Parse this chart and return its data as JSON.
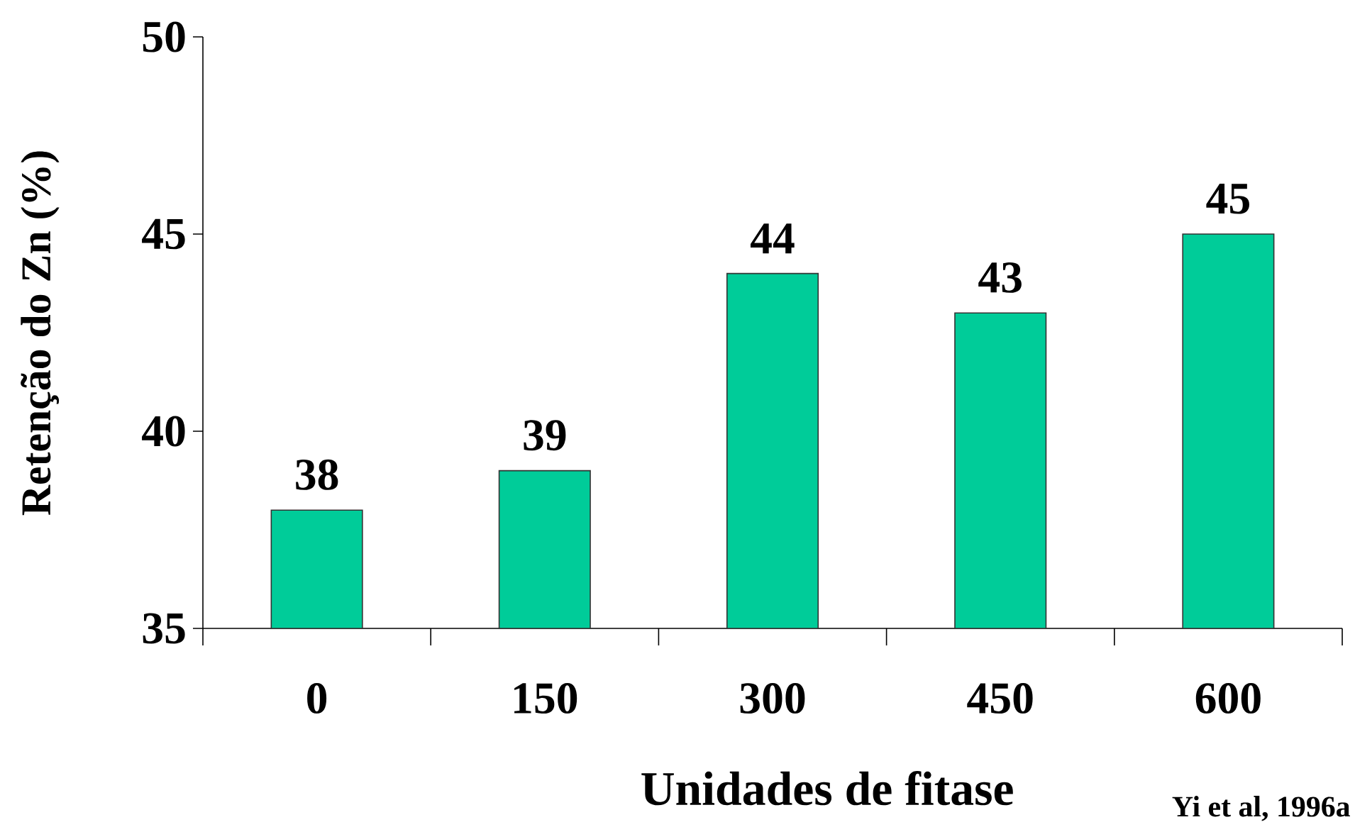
{
  "chart_data": {
    "type": "bar",
    "xlabel": "Unidades de fitase",
    "ylabel": "Retenção do Zn (%)",
    "annotations": [
      "Yi et al, 1996a"
    ],
    "categories": [
      "0",
      "150",
      "300",
      "450",
      "600"
    ],
    "values": [
      38,
      39,
      44,
      43,
      45
    ],
    "color": "#00cc99",
    "ylim": [
      35,
      50
    ],
    "yticks": [
      35,
      40,
      45,
      50
    ],
    "data_labels": true
  }
}
